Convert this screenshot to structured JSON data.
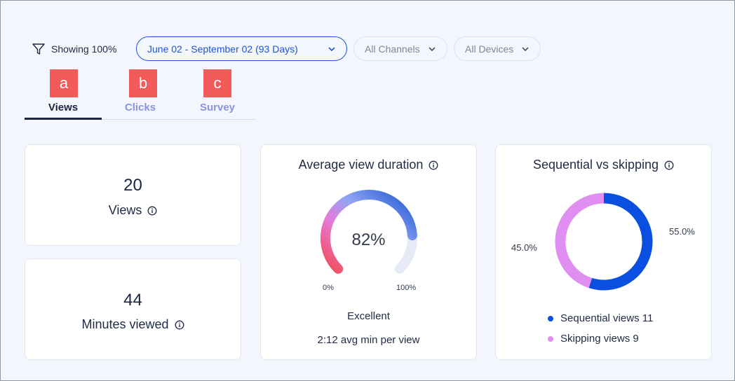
{
  "filters": {
    "showing_label": "Showing 100%",
    "date_range": "June 02 - September 02 (93 Days)",
    "channels": "All Channels",
    "devices": "All Devices"
  },
  "tabs": [
    {
      "badge": "a",
      "label": "Views",
      "active": true
    },
    {
      "badge": "b",
      "label": "Clicks",
      "active": false
    },
    {
      "badge": "c",
      "label": "Survey",
      "active": false
    }
  ],
  "stats": {
    "views": {
      "value": "20",
      "label": "Views"
    },
    "minutes": {
      "value": "44",
      "label": "Minutes viewed"
    }
  },
  "avg_duration": {
    "title": "Average view duration",
    "value_text": "82%",
    "value": 82,
    "min_label": "0%",
    "max_label": "100%",
    "rating": "Excellent",
    "avg_text": "2:12 avg min per view"
  },
  "sequential": {
    "title": "Sequential vs skipping",
    "sequential_pct": "55.0%",
    "skipping_pct": "45.0%",
    "sequential_value": 11,
    "skipping_value": 9,
    "legend": {
      "sequential": "Sequential views 11",
      "skipping": "Skipping views 9"
    }
  },
  "colors": {
    "accent": "#2055d0",
    "sequential": "#0a4fe0",
    "skipping": "#e08ef0",
    "badge": "#f35a5a",
    "tab_inactive": "#8a93e0"
  }
}
